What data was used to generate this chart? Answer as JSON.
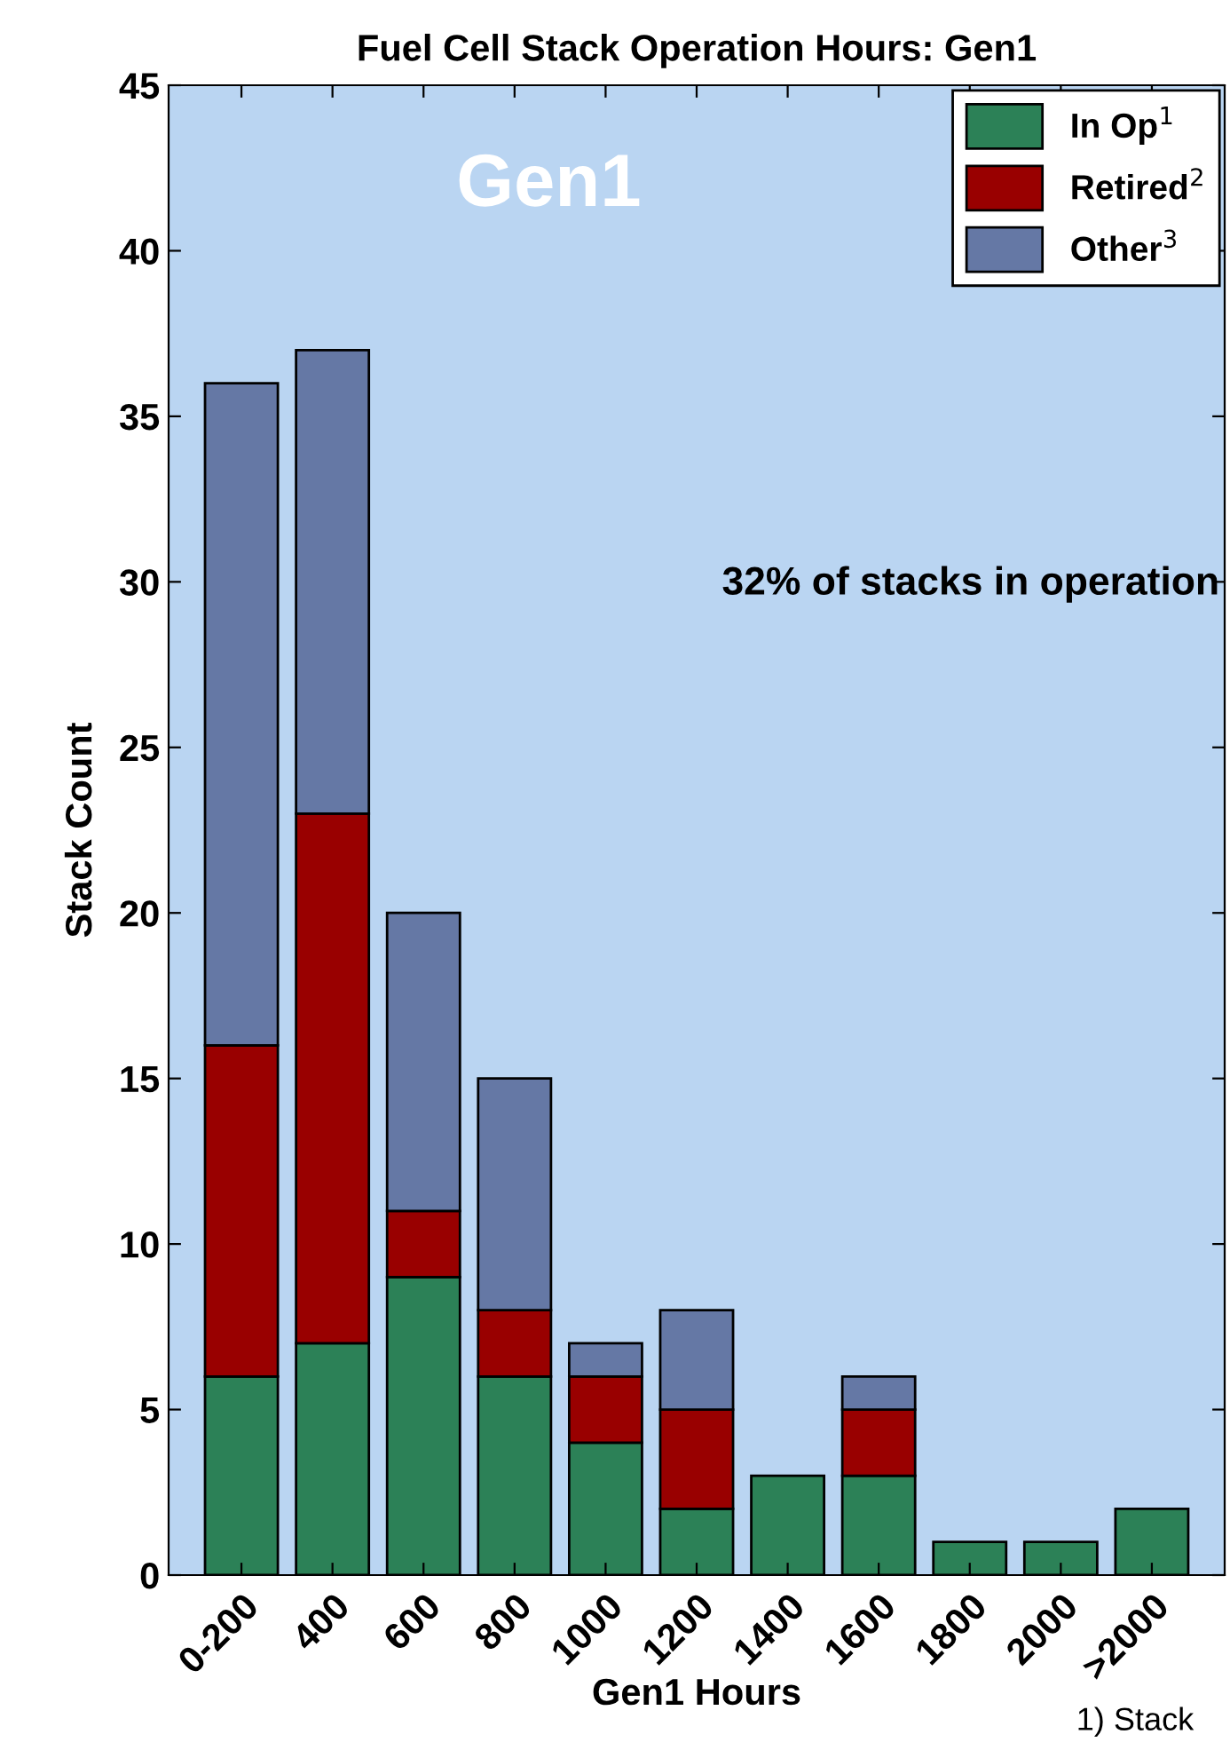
{
  "chart_data": {
    "type": "bar",
    "title": "Fuel Cell Stack Operation Hours: Gen1",
    "xlabel": "Gen1 Hours",
    "ylabel": "Stack Count",
    "categories": [
      "0-200",
      "400",
      "600",
      "800",
      "1000",
      "1200",
      "1400",
      "1600",
      "1800",
      "2000",
      ">2000"
    ],
    "stacked": true,
    "series": [
      {
        "name": "In Op$^{1}$",
        "color": "#2c8157",
        "values": [
          6,
          7,
          9,
          6,
          4,
          2,
          3,
          3,
          1,
          1,
          2
        ]
      },
      {
        "name": "Retired$^{2}$",
        "color": "#990000",
        "values": [
          10,
          16,
          2,
          2,
          2,
          3,
          null,
          2,
          null,
          null,
          null
        ]
      },
      {
        "name": "Other$^{3}$",
        "color": "#6578a5",
        "values": [
          20,
          14,
          9,
          7,
          1,
          3,
          null,
          1,
          null,
          null,
          null
        ]
      }
    ],
    "ylim": [
      0,
      45
    ],
    "yticks": [
      0,
      5,
      10,
      15,
      20,
      25,
      30,
      35,
      40,
      45
    ],
    "grid": false,
    "legend": "top right",
    "annotations": [
      "Gen1",
      "32% of stacks in operation",
      "1) Stack"
    ]
  }
}
